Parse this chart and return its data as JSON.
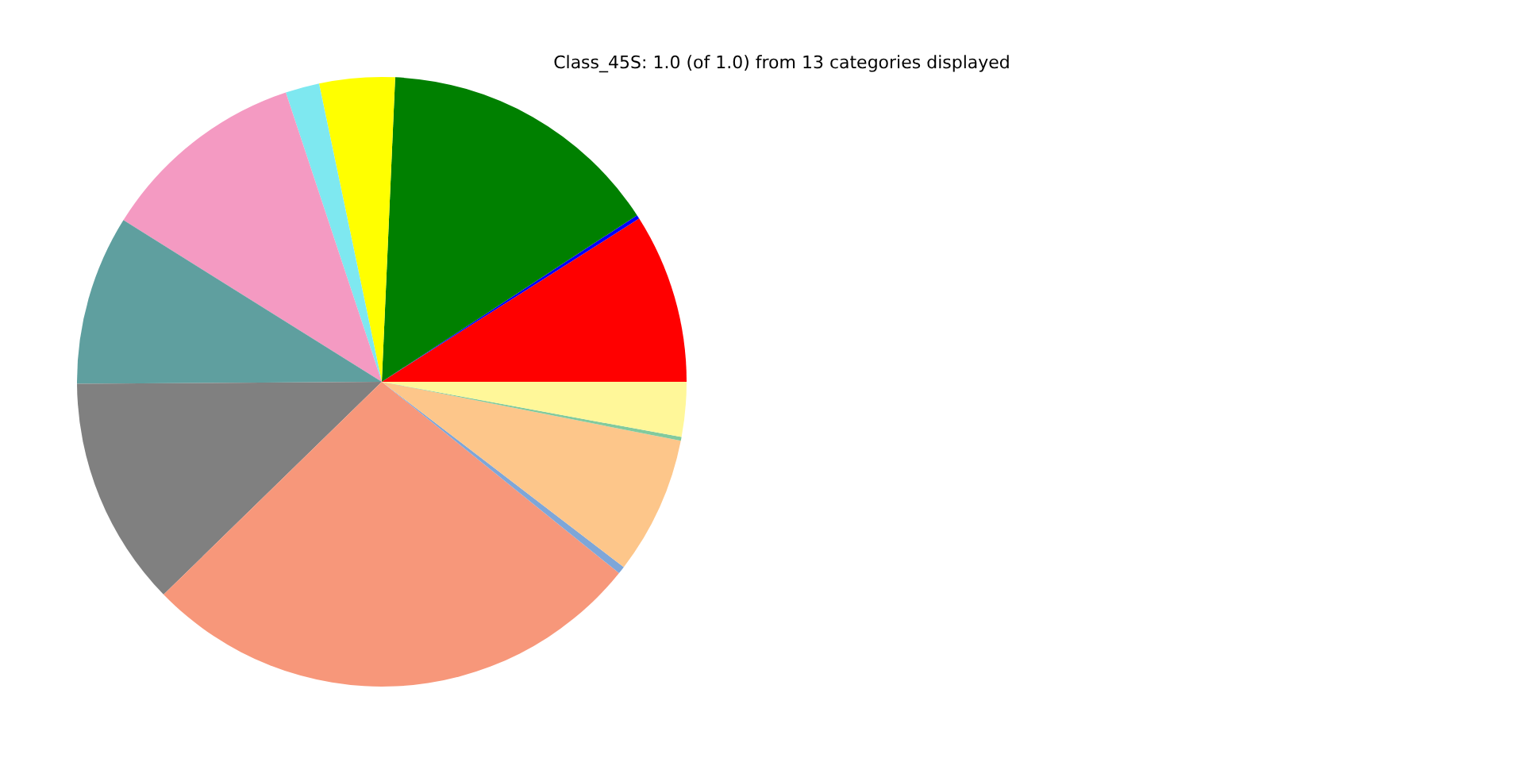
{
  "chart_data": {
    "type": "pie",
    "title": "Class_45S: 1.0 (of 1.0) from 13 categories displayed",
    "categories": [
      null,
      null,
      null,
      null,
      null,
      null,
      null,
      null,
      null,
      null,
      null,
      null,
      null
    ],
    "values": [
      9.0,
      0.2,
      15.1,
      4.0,
      1.8,
      11.0,
      9.0,
      12.2,
      26.9,
      0.4,
      7.3,
      0.2,
      2.9
    ],
    "colors": [
      "#ff0000",
      "#0000ff",
      "#008000",
      "#ffff00",
      "#7ee8f0",
      "#f49ac2",
      "#5f9f9f",
      "#808080",
      "#f7977a",
      "#7ea6d8",
      "#fdc68a",
      "#82ca9d",
      "#fff799"
    ]
  }
}
